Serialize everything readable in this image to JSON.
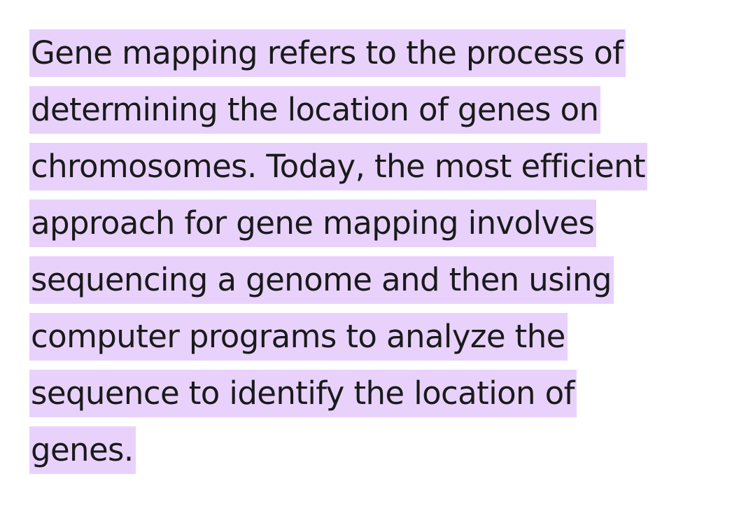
{
  "paragraph": {
    "lines": [
      "Gene mapping refers to the process of",
      "determining the location of genes on",
      "chromosomes. Today, the most efficient",
      "approach for gene mapping involves",
      "sequencing a genome and then using",
      "computer programs to analyze the",
      "sequence to identify the location of",
      "genes."
    ]
  },
  "colors": {
    "highlight": "#e8d2fb",
    "text": "#1a1a1a",
    "background": "#ffffff"
  }
}
